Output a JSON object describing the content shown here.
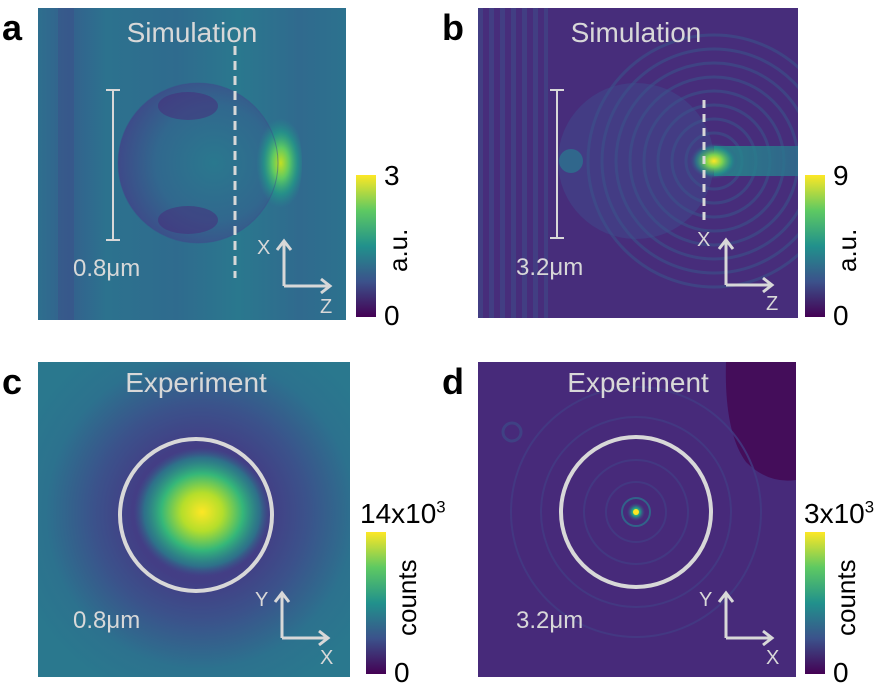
{
  "panels": {
    "a": {
      "letter": "a",
      "title": "Simulation",
      "scale": "0.8μm",
      "axis_vertical": "X",
      "axis_horizontal": "Z",
      "colorbar": {
        "max": "3",
        "min": "0",
        "label": "a.u."
      }
    },
    "b": {
      "letter": "b",
      "title": "Simulation",
      "scale": "3.2μm",
      "axis_vertical": "X",
      "axis_horizontal": "Z",
      "colorbar": {
        "max": "9",
        "min": "0",
        "label": "a.u."
      }
    },
    "c": {
      "letter": "c",
      "title": "Experiment",
      "scale": "0.8μm",
      "axis_vertical": "Y",
      "axis_horizontal": "X",
      "colorbar": {
        "max_base": "14x10",
        "max_exp": "3",
        "min": "0",
        "label": "counts"
      }
    },
    "d": {
      "letter": "d",
      "title": "Experiment",
      "scale": "3.2μm",
      "axis_vertical": "Y",
      "axis_horizontal": "X",
      "colorbar": {
        "max_base": "3x10",
        "max_exp": "3",
        "min": "0",
        "label": "counts"
      }
    }
  },
  "colors": {
    "viridis": [
      "#440154",
      "#3b528b",
      "#21918c",
      "#5ec962",
      "#fde725"
    ],
    "overlay": "#d8d8d8"
  }
}
